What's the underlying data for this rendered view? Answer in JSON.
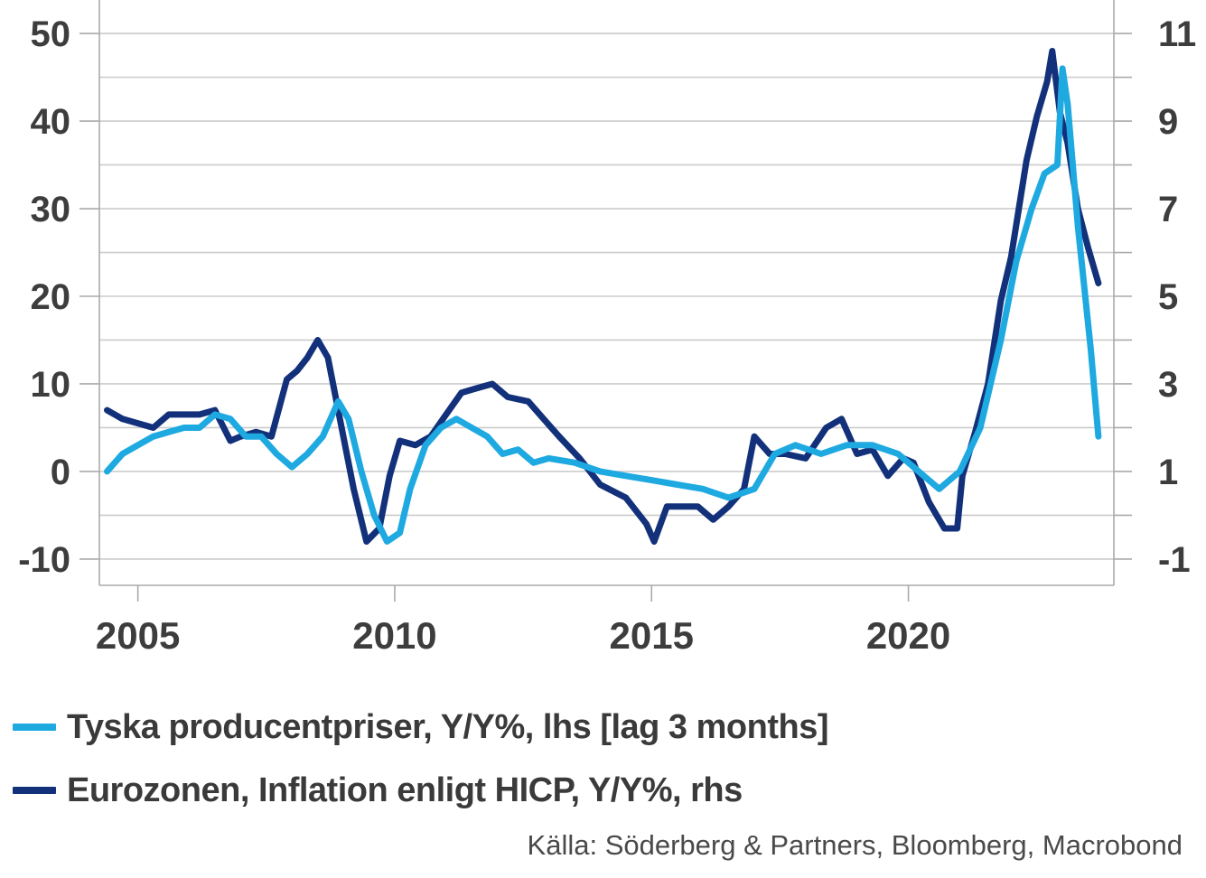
{
  "chart_data": {
    "type": "line",
    "title": "",
    "xlabel": "",
    "ylabel": "",
    "xlim": [
      2004.25,
      2024.0
    ],
    "x_ticks": [
      2005,
      2010,
      2015,
      2020
    ],
    "y_left": {
      "lim": [
        -13,
        53
      ],
      "ticks": [
        -10,
        0,
        10,
        20,
        30,
        40,
        50
      ]
    },
    "y_right": {
      "lim": [
        -1.6,
        11.6
      ],
      "ticks": [
        -1,
        1,
        3,
        5,
        7,
        9,
        11
      ]
    },
    "grid": true,
    "legend_position": "bottom",
    "colors": {
      "ppi": "#1ea9e1",
      "hicp": "#13317a",
      "grid": "#cccccc",
      "axis": "#aaaaaa"
    },
    "series": [
      {
        "name": "Tyska producentpriser, Y/Y%, lhs [lag 3 months]",
        "axis": "left",
        "x": [
          2004.4,
          2004.7,
          2005.0,
          2005.3,
          2005.6,
          2005.9,
          2006.2,
          2006.5,
          2006.8,
          2007.1,
          2007.4,
          2007.7,
          2008.0,
          2008.3,
          2008.6,
          2008.9,
          2009.1,
          2009.35,
          2009.6,
          2009.85,
          2010.1,
          2010.3,
          2010.6,
          2010.9,
          2011.2,
          2011.5,
          2011.8,
          2012.1,
          2012.4,
          2012.7,
          2013.0,
          2013.5,
          2014.0,
          2014.5,
          2015.0,
          2015.5,
          2016.0,
          2016.5,
          2017.0,
          2017.4,
          2017.8,
          2018.3,
          2018.8,
          2019.3,
          2019.8,
          2020.2,
          2020.6,
          2021.0,
          2021.4,
          2021.8,
          2022.1,
          2022.4,
          2022.65,
          2022.9,
          2023.0,
          2023.1,
          2023.3,
          2023.55,
          2023.7
        ],
        "y": [
          0,
          2,
          3,
          4,
          4.5,
          5,
          5,
          6.5,
          6,
          4,
          4,
          2,
          0.5,
          2,
          4,
          8,
          6,
          0,
          -5,
          -8,
          -7,
          -2,
          3,
          5,
          6,
          5,
          4,
          2,
          2.5,
          1,
          1.5,
          1,
          0,
          -0.5,
          -1,
          -1.5,
          -2,
          -3,
          -2,
          2,
          3,
          2,
          3,
          3,
          2,
          0,
          -2,
          0,
          5,
          15,
          24,
          30,
          34,
          35,
          46,
          42,
          28,
          14,
          4
        ]
      },
      {
        "name": "Eurozonen, Inflation enligt HICP, Y/Y%, rhs",
        "axis": "right",
        "x": [
          2004.4,
          2004.7,
          2005.0,
          2005.3,
          2005.6,
          2005.9,
          2006.2,
          2006.5,
          2006.8,
          2007.0,
          2007.3,
          2007.6,
          2007.9,
          2008.1,
          2008.3,
          2008.5,
          2008.7,
          2008.95,
          2009.2,
          2009.45,
          2009.7,
          2009.9,
          2010.1,
          2010.4,
          2010.7,
          2011.0,
          2011.3,
          2011.6,
          2011.9,
          2012.2,
          2012.6,
          2012.9,
          2013.2,
          2013.6,
          2014.0,
          2014.5,
          2014.9,
          2015.05,
          2015.3,
          2015.6,
          2015.9,
          2016.2,
          2016.5,
          2016.8,
          2017.0,
          2017.3,
          2017.6,
          2018.0,
          2018.4,
          2018.7,
          2019.0,
          2019.3,
          2019.6,
          2019.9,
          2020.1,
          2020.4,
          2020.7,
          2020.95,
          2021.05,
          2021.3,
          2021.55,
          2021.8,
          2022.0,
          2022.3,
          2022.5,
          2022.7,
          2022.8,
          2022.95,
          2023.1,
          2023.3,
          2023.5,
          2023.7
        ],
        "y": [
          2.4,
          2.2,
          2.1,
          2.0,
          2.3,
          2.3,
          2.3,
          2.4,
          1.7,
          1.8,
          1.9,
          1.8,
          3.1,
          3.3,
          3.6,
          4.0,
          3.6,
          2.1,
          0.6,
          -0.6,
          -0.3,
          0.9,
          1.7,
          1.6,
          1.8,
          2.3,
          2.8,
          2.9,
          3.0,
          2.7,
          2.6,
          2.2,
          1.8,
          1.3,
          0.7,
          0.4,
          -0.2,
          -0.6,
          0.2,
          0.2,
          0.2,
          -0.1,
          0.2,
          0.6,
          1.8,
          1.4,
          1.4,
          1.3,
          2.0,
          2.2,
          1.4,
          1.5,
          0.9,
          1.3,
          1.2,
          0.3,
          -0.3,
          -0.3,
          0.9,
          1.9,
          3.0,
          4.9,
          5.9,
          8.1,
          9.1,
          9.9,
          10.6,
          9.2,
          8.5,
          7.0,
          6.1,
          5.3
        ]
      }
    ]
  },
  "legend": {
    "ppi_label": "Tyska producentpriser, Y/Y%, lhs [lag 3 months]",
    "hicp_label": "Eurozonen, Inflation enligt HICP, Y/Y%, rhs"
  },
  "source": "Källa: Söderberg & Partners, Bloomberg, Macrobond"
}
